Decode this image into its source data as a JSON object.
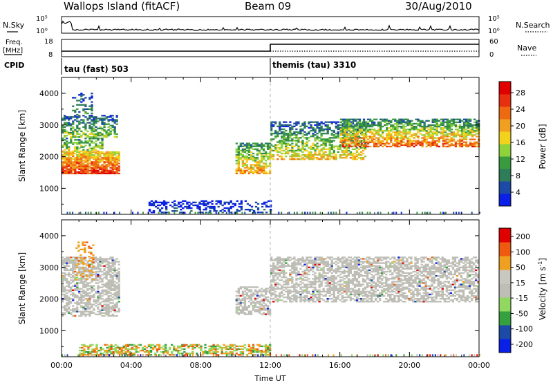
{
  "header": {
    "site_title": "Wallops Island (fitACF)",
    "beam_label": "Beam 09",
    "date_label": "30/Aug/2010"
  },
  "aux_panels": {
    "nsky_label": "N.Sky",
    "nsearch_label": "N.Search",
    "count_tick_top": "10^5",
    "count_tick_bottom": "10^0",
    "freq_label_1": "Freq.",
    "freq_label_2": "[MHz]",
    "freq_tick_top": "18",
    "freq_tick_bottom": "8",
    "nave_label": "Nave",
    "nave_tick_top": "60",
    "nave_tick_bottom": "0",
    "cpid_label": "CPID",
    "cpid_1": "tau (fast) 503",
    "cpid_2": "themis (tau) 3310"
  },
  "colors": {
    "power": [
      "#0a20e6",
      "#1c4aa6",
      "#2f7c5a",
      "#3a9a40",
      "#8fd23c",
      "#f2d21c",
      "#f0a020",
      "#ee6a10",
      "#e63010",
      "#e00000"
    ],
    "velocity": [
      "#e00000",
      "#ee5a10",
      "#f0a020",
      "#c8c8c0",
      "#bebeb6",
      "#90d860",
      "#34a040",
      "#1c4aa6",
      "#0a20e6"
    ],
    "ground": "#bebeb6"
  },
  "chart_data": [
    {
      "type": "heatmap",
      "name": "power",
      "ylabel": "Slant Range [km]",
      "ylim": [
        180,
        4500
      ],
      "yticks": [
        "1000",
        "2000",
        "3000",
        "4000"
      ],
      "xlim": [
        0,
        24
      ],
      "colorbar_label": "Power [dB]",
      "colorbar_ticks": [
        "4",
        "8",
        "12",
        "16",
        "20",
        "24",
        "28"
      ],
      "colorbar_range": [
        0,
        30
      ],
      "regions": [
        {
          "t0": 0.0,
          "t1": 3.3,
          "r0": 1450,
          "r1": 2150,
          "v0": 26,
          "v1": 16,
          "dens": 0.85
        },
        {
          "t0": 0.0,
          "t1": 2.4,
          "r0": 2150,
          "r1": 2600,
          "v0": 16,
          "v1": 8,
          "dens": 0.55
        },
        {
          "t0": 0.0,
          "t1": 3.2,
          "r0": 2600,
          "r1": 3300,
          "v0": 14,
          "v1": 4,
          "dens": 0.55
        },
        {
          "t0": 0.6,
          "t1": 1.7,
          "r0": 3300,
          "r1": 4000,
          "v0": 10,
          "v1": 2,
          "dens": 0.3
        },
        {
          "t0": 10.0,
          "t1": 12.0,
          "r0": 1450,
          "r1": 2400,
          "v0": 20,
          "v1": 8,
          "dens": 0.7
        },
        {
          "t0": 12.0,
          "t1": 17.5,
          "r0": 1900,
          "r1": 3100,
          "v0": 18,
          "v1": 4,
          "dens": 0.55
        },
        {
          "t0": 16.0,
          "t1": 24.0,
          "r0": 2300,
          "r1": 3200,
          "v0": 24,
          "v1": 6,
          "dens": 0.65
        },
        {
          "t0": 5.0,
          "t1": 12.0,
          "r0": 220,
          "r1": 600,
          "v0": 4,
          "v1": 0,
          "dens": 0.4
        }
      ]
    },
    {
      "type": "heatmap",
      "name": "velocity",
      "ylabel": "Slant Range [km]",
      "ylim": [
        180,
        4500
      ],
      "yticks": [
        "1000",
        "2000",
        "3000",
        "4000"
      ],
      "xlabel": "Time UT",
      "xticks": [
        "00:00",
        "04:00",
        "08:00",
        "12:00",
        "16:00",
        "20:00",
        "00:00"
      ],
      "xlim": [
        0,
        24
      ],
      "colorbar_label": "Velocity [m s",
      "colorbar_label_sup": "-1",
      "colorbar_label_end": "]",
      "colorbar_ticks": [
        "200",
        "100",
        "50",
        "15",
        "-15",
        "-50",
        "-100",
        "-200"
      ],
      "regions": [
        {
          "t0": 0.0,
          "t1": 3.3,
          "r0": 1450,
          "r1": 3300,
          "v0": "gray",
          "v1": "gray",
          "dens": 0.6
        },
        {
          "t0": 0.8,
          "t1": 1.8,
          "r0": 2600,
          "r1": 3800,
          "v0": "orange",
          "v1": "orange",
          "dens": 0.25
        },
        {
          "t0": 10.0,
          "t1": 12.0,
          "r0": 1500,
          "r1": 2400,
          "v0": "gray",
          "v1": "gray",
          "dens": 0.55
        },
        {
          "t0": 12.0,
          "t1": 24.0,
          "r0": 1900,
          "r1": 3300,
          "v0": "gray",
          "v1": "gray",
          "dens": 0.6
        },
        {
          "t0": 1.0,
          "t1": 12.0,
          "r0": 220,
          "r1": 560,
          "v0": "green",
          "v1": "orange",
          "dens": 0.55
        }
      ]
    }
  ]
}
